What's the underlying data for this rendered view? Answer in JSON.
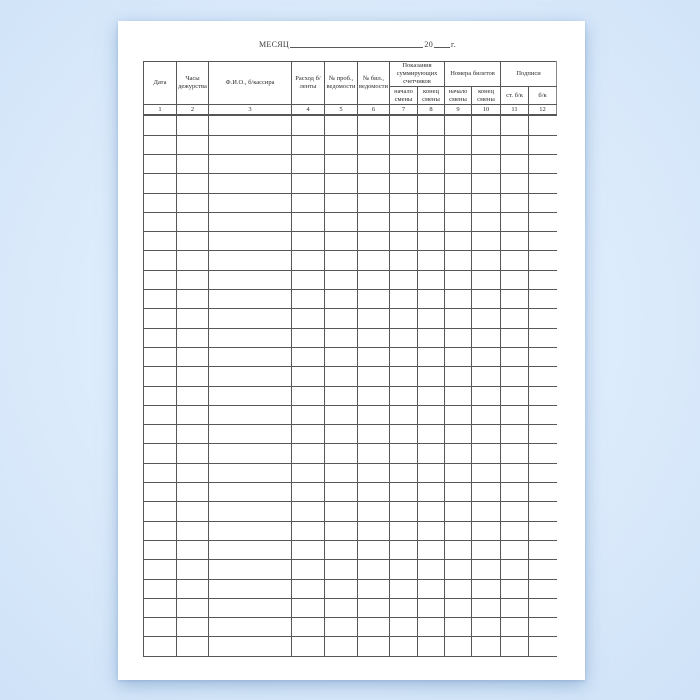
{
  "document": {
    "title": {
      "month_label": "МЕСЯЦ",
      "year_prefix": "20",
      "year_suffix": "г."
    },
    "table": {
      "headers": {
        "date": "Дата",
        "duty_hours": "Часы дежурства",
        "cashier_name": "Ф.И.О., б/кассира",
        "tape_usage": "Расход б/ленты",
        "trial_sheet_no": "№ проб., ведомости",
        "ticket_sheet_no": "№ бил., ведомости",
        "counters_group": "Показания суммирующих счетчиков",
        "ticket_numbers_group": "Номера билетов",
        "signatures_group": "Подписи",
        "shift_start": "начало смены",
        "shift_end": "конец смены",
        "senior_cashier": "ст. б/к",
        "cashier": "б/к"
      },
      "column_numbers": [
        "1",
        "2",
        "3",
        "4",
        "5",
        "6",
        "7",
        "8",
        "9",
        "10",
        "11",
        "12"
      ],
      "data_rows": 28,
      "cell_values": []
    },
    "colors": {
      "paper": "#ffffff",
      "table_line": "#565656",
      "background_blue": "#cfe2f7",
      "text": "#2b2b2b"
    }
  }
}
